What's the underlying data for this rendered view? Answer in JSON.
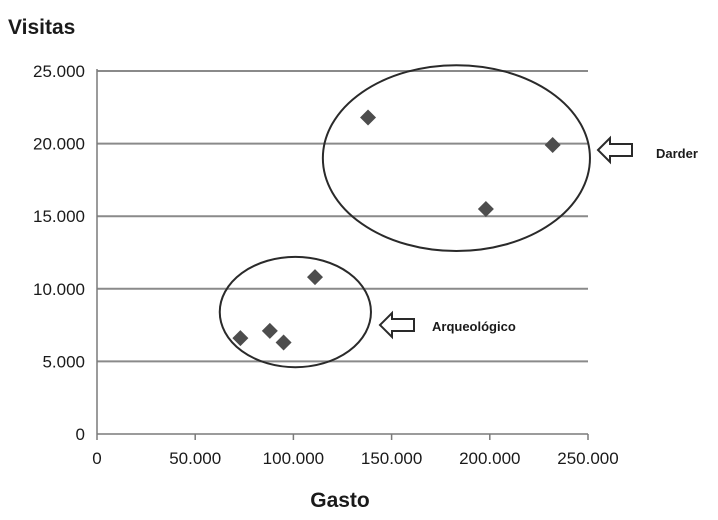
{
  "chart_data": {
    "type": "scatter",
    "title": "",
    "xlabel": "Gasto",
    "ylabel": "Visitas",
    "xlim": [
      0,
      250000
    ],
    "ylim": [
      0,
      25000
    ],
    "x_ticks": [
      0,
      50000,
      100000,
      150000,
      200000,
      250000
    ],
    "x_tick_labels": [
      "0",
      "50.000",
      "100.000",
      "150.000",
      "200.000",
      "250.000"
    ],
    "y_ticks": [
      0,
      5000,
      10000,
      15000,
      20000,
      25000
    ],
    "y_tick_labels": [
      "0",
      "5.000",
      "10.000",
      "15.000",
      "20.000",
      "25.000"
    ],
    "grid": "horizontal",
    "marker": "diamond",
    "marker_color": "#4d4d4d",
    "series": [
      {
        "x": [
          73000,
          88000,
          95000,
          111000,
          138000,
          198000,
          232000
        ],
        "y": [
          6600,
          7100,
          6300,
          10800,
          21800,
          15500,
          19900
        ]
      }
    ],
    "annotations": [
      {
        "label": "Darder",
        "group_center": [
          183000,
          19000
        ],
        "group_radii": [
          68000,
          6400
        ]
      },
      {
        "label": "Arqueológico",
        "group_center": [
          101000,
          8400
        ],
        "group_radii": [
          38500,
          3800
        ]
      }
    ]
  }
}
